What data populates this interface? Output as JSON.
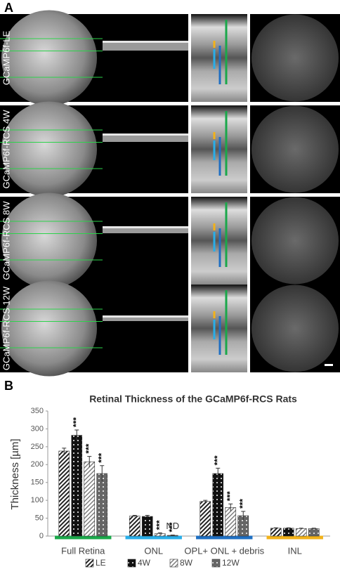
{
  "panel_a": {
    "label": "A",
    "rows": [
      "GCaMP6f-LE",
      "GCaMP6f-RCS 4W",
      "GCaMP6f-RCS 8W",
      "GCaMP6f-RCS 12W"
    ]
  },
  "panel_b": {
    "label": "B"
  },
  "chart_data": {
    "type": "bar",
    "title": "Retinal Thickness of the GCaMP6f-RCS Rats",
    "y_label": "Thickness [µm]",
    "categories": [
      "Full Retina",
      "ONL",
      "OPL+ ONL + debris",
      "INL"
    ],
    "category_colors": [
      "#1aa84a",
      "#29aee8",
      "#1f6fc2",
      "#f2b21a"
    ],
    "series": [
      {
        "name": "LE",
        "color": "#222222",
        "pattern": "stripes",
        "values": [
          238,
          56,
          97,
          22
        ],
        "errors": [
          8,
          2,
          3,
          1
        ]
      },
      {
        "name": "4W",
        "color": "#111111",
        "pattern": "dots",
        "values": [
          282,
          55,
          175,
          22
        ],
        "errors": [
          15,
          3,
          15,
          1
        ]
      },
      {
        "name": "8W",
        "color": "#777777",
        "pattern": "stripes",
        "values": [
          208,
          7,
          80,
          21
        ],
        "errors": [
          15,
          2,
          10,
          1
        ]
      },
      {
        "name": "12W",
        "color": "#666666",
        "pattern": "dots",
        "values": [
          175,
          2,
          57,
          21
        ],
        "errors": [
          22,
          1,
          12,
          1
        ]
      }
    ],
    "annotations": [
      {
        "text": "***",
        "series": 1,
        "category": 0
      },
      {
        "text": "***",
        "series": 2,
        "category": 0
      },
      {
        "text": "***",
        "series": 3,
        "category": 0
      },
      {
        "text": "***",
        "series": 2,
        "category": 1
      },
      {
        "text": "***",
        "series": 3,
        "category": 1
      },
      {
        "text": "ND",
        "series": 3,
        "category": 1
      },
      {
        "text": "***",
        "series": 1,
        "category": 2
      },
      {
        "text": "***",
        "series": 2,
        "category": 2
      },
      {
        "text": "***",
        "series": 3,
        "category": 2
      }
    ],
    "ylim": [
      0,
      350
    ],
    "yticks": [
      0,
      50,
      100,
      150,
      200,
      250,
      300,
      350
    ],
    "grid": false
  }
}
